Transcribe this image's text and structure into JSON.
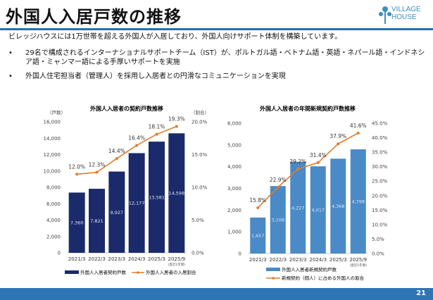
{
  "header": {
    "title": "外国人入居戸数の推移",
    "logo_text": "VILLAGE HOUSE"
  },
  "body": {
    "intro": "ビレッジハウスには1万世帯を超える外国人が入居しており、外国人向けサポート体制を構築しています。",
    "bullets": [
      "29名で構成されるインターナショナルサポートチーム（IST）が、ポルトガル語・ベトナム語・英語・ネパール語・インドネシア語・ミャンマー語による手厚いサポートを実施",
      "外国人住宅担当者（管理人）を採用し入居者との円滑なコミュニケーションを実現"
    ],
    "bullet_symbol": "•"
  },
  "footer": {
    "page": "21"
  },
  "chart_data": [
    {
      "type": "bar+line",
      "title": "外国人入居者の契約戸数推移",
      "ylabel_left": "（戸数）",
      "ylabel_right": "（割合）",
      "categories": [
        "2021/3",
        "2022/3",
        "2023/3",
        "2024/3",
        "2025/3",
        "2025/9"
      ],
      "category_note": "(直近1年間)",
      "series": [
        {
          "name": "外国人入居者契約戸数",
          "type": "bar",
          "axis": "left",
          "values": [
            7360,
            7821,
            9927,
            12177,
            13581,
            14598
          ],
          "labels": [
            "7,360",
            "7,821",
            "9,927",
            "12,177",
            "13,581",
            "14,598"
          ],
          "color": "#1b2a6b"
        },
        {
          "name": "外国人入居者の入居割合",
          "type": "line",
          "axis": "right",
          "values": [
            12.0,
            12.3,
            14.4,
            16.4,
            18.1,
            19.3
          ],
          "labels": [
            "12.0%",
            "12.3%",
            "14.4%",
            "16.4%",
            "18.1%",
            "19.3%"
          ],
          "color": "#e07b2f"
        }
      ],
      "ylim_left": [
        0,
        16000
      ],
      "yticks_left": [
        "0",
        "2,000",
        "4,000",
        "6,000",
        "8,000",
        "10,000",
        "12,000",
        "14,000",
        "16,000"
      ],
      "ylim_right": [
        0,
        20
      ],
      "yticks_right": [
        "0.0%",
        "5.0%",
        "10.0%",
        "15.0%",
        "20.0%"
      ],
      "legend": "bottom",
      "grid": false
    },
    {
      "type": "bar+line",
      "title": "外国人入居者の年間新規契約戸数推移",
      "categories": [
        "2021/3",
        "2022/3",
        "2023/3",
        "2024/3",
        "2025/3",
        "2025/9"
      ],
      "category_note": "(直近1年間)",
      "series": [
        {
          "name": "外国人入居者新規契約戸数",
          "type": "bar",
          "axis": "left",
          "values": [
            1657,
            3108,
            4227,
            4017,
            4368,
            4798
          ],
          "labels": [
            "1,657",
            "3,108",
            "4,227",
            "4,017",
            "4,368",
            "4,798"
          ],
          "color": "#4a8ac6"
        },
        {
          "name": "新規契約（個人）に占める外国人の割合",
          "type": "line",
          "axis": "right",
          "values": [
            15.8,
            22.9,
            29.2,
            31.4,
            37.9,
            41.6
          ],
          "labels": [
            "15.8%",
            "22.9%",
            "29.2%",
            "31.4%",
            "37.9%",
            "41.6%"
          ],
          "color": "#e07b2f"
        }
      ],
      "ylim_left": [
        0,
        6000
      ],
      "yticks_left": [
        "0",
        "1,000",
        "2,000",
        "3,000",
        "4,000",
        "5,000",
        "6,000"
      ],
      "ylim_right": [
        0,
        45
      ],
      "yticks_right": [
        "0.0%",
        "5.0%",
        "10.0%",
        "15.0%",
        "20.0%",
        "25.0%",
        "30.0%",
        "35.0%",
        "40.0%",
        "45.0%"
      ],
      "legend": "bottom",
      "grid": false
    }
  ]
}
